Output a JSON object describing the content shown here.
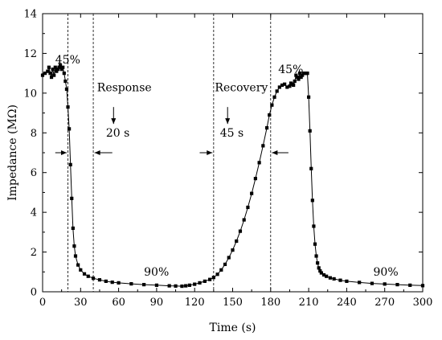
{
  "chart_data": {
    "type": "scatter",
    "xlabel": "Time (s)",
    "ylabel": "Impedance (MΩ)",
    "xlim": [
      0,
      300
    ],
    "ylim": [
      0,
      14
    ],
    "xticks": [
      0,
      30,
      60,
      90,
      120,
      150,
      180,
      210,
      240,
      270,
      300
    ],
    "yticks": [
      0,
      2,
      4,
      6,
      8,
      10,
      12,
      14
    ],
    "grid": false,
    "legend": "none",
    "series": [
      {
        "marker": "square",
        "line": true,
        "color": "#000000",
        "x": [
          0,
          2,
          4,
          5,
          6,
          7,
          8,
          9,
          10,
          11,
          12,
          13,
          14,
          15,
          16,
          17,
          18,
          19,
          20,
          21,
          22,
          23,
          24,
          25,
          26,
          28,
          30,
          33,
          36,
          40,
          45,
          50,
          55,
          60,
          70,
          80,
          90,
          100,
          105,
          110,
          113,
          116,
          120,
          124,
          128,
          132,
          135,
          138,
          141,
          144,
          147,
          150,
          153,
          156,
          159,
          162,
          165,
          168,
          171,
          174,
          177,
          179,
          181,
          183,
          185,
          187,
          189,
          191,
          193,
          195,
          196,
          197,
          198,
          199,
          200,
          201,
          202,
          203,
          204,
          205,
          206,
          207,
          208,
          209,
          210,
          211,
          212,
          213,
          214,
          215,
          216,
          217,
          218,
          219,
          220,
          222,
          224,
          227,
          230,
          235,
          240,
          250,
          260,
          270,
          280,
          290,
          300
        ],
        "y": [
          10.9,
          11.0,
          11.1,
          11.3,
          11.0,
          10.8,
          11.2,
          10.9,
          11.3,
          11.1,
          11.2,
          11.3,
          11.4,
          11.2,
          11.3,
          11.0,
          10.6,
          10.2,
          9.3,
          8.2,
          6.4,
          4.7,
          3.2,
          2.3,
          1.8,
          1.35,
          1.1,
          0.9,
          0.78,
          0.68,
          0.6,
          0.53,
          0.48,
          0.45,
          0.4,
          0.36,
          0.33,
          0.3,
          0.29,
          0.28,
          0.3,
          0.33,
          0.38,
          0.45,
          0.53,
          0.62,
          0.72,
          0.88,
          1.1,
          1.38,
          1.72,
          2.1,
          2.55,
          3.05,
          3.62,
          4.25,
          4.95,
          5.7,
          6.5,
          7.35,
          8.25,
          8.9,
          9.4,
          9.8,
          10.1,
          10.3,
          10.4,
          10.45,
          10.3,
          10.35,
          10.5,
          10.45,
          10.4,
          10.6,
          10.9,
          10.8,
          10.7,
          11.0,
          10.8,
          10.9,
          11.0,
          11.0,
          11.0,
          11.0,
          9.8,
          8.1,
          6.2,
          4.6,
          3.3,
          2.4,
          1.8,
          1.45,
          1.2,
          1.05,
          0.95,
          0.85,
          0.78,
          0.7,
          0.65,
          0.58,
          0.53,
          0.47,
          0.42,
          0.39,
          0.36,
          0.33,
          0.31
        ]
      }
    ],
    "reference_lines_x": [
      20,
      40,
      135,
      180
    ],
    "annotations": [
      {
        "text": "45%",
        "x": 10,
        "y": 11.5
      },
      {
        "text": "Response",
        "x": 43,
        "y": 10.1
      },
      {
        "text": "20 s",
        "x": 50,
        "y": 7.8
      },
      {
        "text": "90%",
        "x": 80,
        "y": 0.8
      },
      {
        "text": "Recovery",
        "x": 136,
        "y": 10.1
      },
      {
        "text": "45 s",
        "x": 140,
        "y": 7.8
      },
      {
        "text": "45%",
        "x": 186,
        "y": 11.0
      },
      {
        "text": "90%",
        "x": 261,
        "y": 0.8
      }
    ],
    "arrows": [
      {
        "from": [
          10,
          7.0
        ],
        "to": [
          19,
          7.0
        ]
      },
      {
        "from": [
          55,
          7.0
        ],
        "to": [
          41,
          7.0
        ]
      },
      {
        "from": [
          124,
          7.0
        ],
        "to": [
          134,
          7.0
        ]
      },
      {
        "from": [
          194,
          7.0
        ],
        "to": [
          181,
          7.0
        ]
      },
      {
        "from": [
          56,
          9.3
        ],
        "to": [
          56,
          8.45
        ]
      },
      {
        "from": [
          146,
          9.3
        ],
        "to": [
          146,
          8.45
        ]
      }
    ]
  }
}
